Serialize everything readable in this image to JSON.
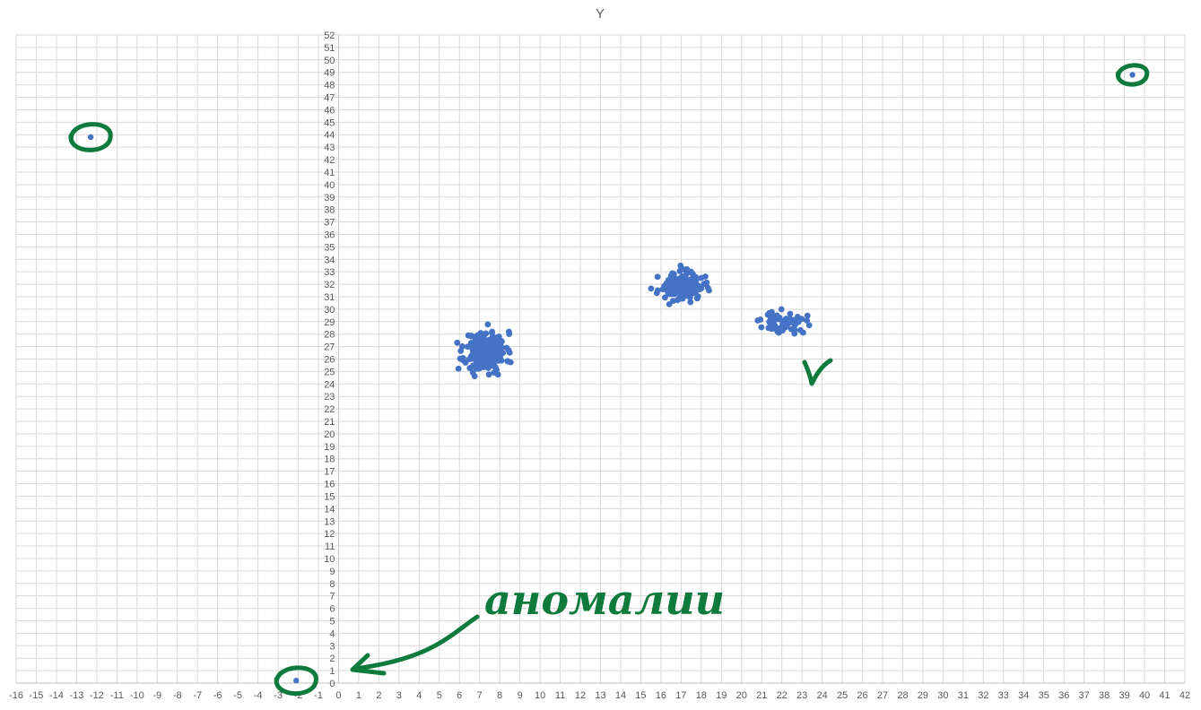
{
  "chart_data": {
    "type": "scatter",
    "title": "Y",
    "xlabel": "",
    "ylabel": "",
    "xlim": [
      -16,
      42
    ],
    "ylim": [
      0,
      52
    ],
    "x_tick_step": 1,
    "y_tick_step": 1,
    "grid": true,
    "legend": "none",
    "point_color": "#4472C4",
    "clusters": [
      {
        "cx": 7.3,
        "cy": 26.6,
        "sx": 0.5,
        "sy": 0.8,
        "n": 230,
        "seed": 11
      },
      {
        "cx": 17.0,
        "cy": 31.8,
        "sx": 0.55,
        "sy": 0.55,
        "n": 140,
        "seed": 23
      },
      {
        "cx": 22.1,
        "cy": 28.9,
        "sx": 0.55,
        "sy": 0.45,
        "n": 55,
        "seed": 37
      }
    ],
    "outliers": [
      {
        "x": -12.3,
        "y": 43.8
      },
      {
        "x": 39.4,
        "y": 48.8
      },
      {
        "x": -2.1,
        "y": 0.2
      }
    ],
    "annotations": {
      "color": "#0E7A3C",
      "text": "аномалии"
    }
  }
}
